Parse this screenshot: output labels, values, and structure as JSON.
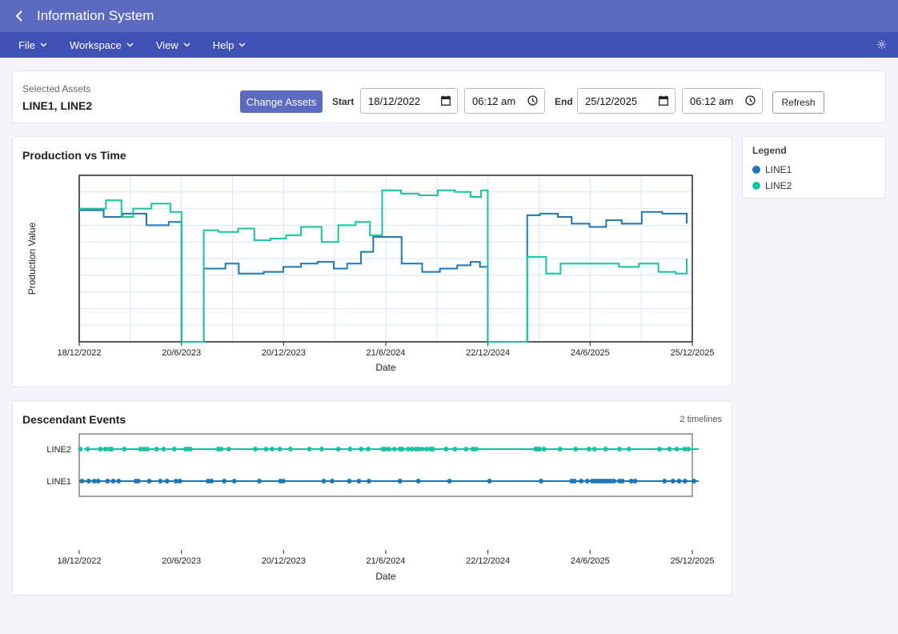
{
  "header": {
    "title": "Information System"
  },
  "menu": [
    "File",
    "Workspace",
    "View",
    "Help"
  ],
  "assets": {
    "label": "Selected Assets",
    "value": "LINE1, LINE2",
    "change_button": "Change Assets",
    "start_label": "Start",
    "start_date": "18/12/2022",
    "start_time": "06:12 am",
    "end_label": "End",
    "end_date": "25/12/2025",
    "end_time": "06:12 am",
    "refresh_button": "Refresh"
  },
  "legend": {
    "title": "Legend",
    "items": [
      {
        "name": "LINE1",
        "color": "#1f77b4"
      },
      {
        "name": "LINE2",
        "color": "#17c3a0"
      }
    ]
  },
  "chart_data": [
    {
      "type": "line",
      "title": "Production vs Time",
      "xlabel": "Date",
      "ylabel": "Production Value",
      "xlim": [
        "2022-12-18",
        "2025-12-25"
      ],
      "grid": true,
      "xticks": [
        "18/12/2022",
        "20/6/2023",
        "20/12/2023",
        "21/6/2024",
        "22/12/2024",
        "24/6/2025",
        "25/12/2025"
      ],
      "step": true,
      "series": [
        {
          "name": "LINE1",
          "color": "#1f77b4",
          "points": [
            [
              "2022-12-18",
              79
            ],
            [
              "2023-01-31",
              75
            ],
            [
              "2023-03-06",
              77
            ],
            [
              "2023-04-18",
              70
            ],
            [
              "2023-05-28",
              72
            ],
            [
              "2023-06-20",
              0
            ],
            [
              "2023-07-30",
              44
            ],
            [
              "2023-09-07",
              47
            ],
            [
              "2023-10-01",
              41
            ],
            [
              "2023-11-15",
              42
            ],
            [
              "2023-12-20",
              45
            ],
            [
              "2024-01-21",
              47
            ],
            [
              "2024-02-20",
              48
            ],
            [
              "2024-03-20",
              44
            ],
            [
              "2024-04-13",
              47
            ],
            [
              "2024-05-08",
              54
            ],
            [
              "2024-05-30",
              63
            ],
            [
              "2024-07-20",
              47
            ],
            [
              "2024-08-26",
              42
            ],
            [
              "2024-09-27",
              44
            ],
            [
              "2024-10-28",
              46
            ],
            [
              "2024-11-21",
              48
            ],
            [
              "2024-12-08",
              45
            ],
            [
              "2024-12-22",
              0
            ],
            [
              "2025-03-03",
              76
            ],
            [
              "2025-03-26",
              77
            ],
            [
              "2025-04-27",
              75
            ],
            [
              "2025-05-22",
              71
            ],
            [
              "2025-06-23",
              69
            ],
            [
              "2025-07-23",
              73
            ],
            [
              "2025-08-20",
              71
            ],
            [
              "2025-09-25",
              78
            ],
            [
              "2025-11-01",
              77
            ],
            [
              "2025-12-15",
              71
            ]
          ]
        },
        {
          "name": "LINE2",
          "color": "#17c3a0",
          "points": [
            [
              "2022-12-18",
              80
            ],
            [
              "2023-02-04",
              85
            ],
            [
              "2023-03-04",
              75
            ],
            [
              "2023-03-25",
              80
            ],
            [
              "2023-04-27",
              83
            ],
            [
              "2023-05-31",
              78
            ],
            [
              "2023-06-20",
              0
            ],
            [
              "2023-07-30",
              67
            ],
            [
              "2023-08-25",
              66
            ],
            [
              "2023-09-30",
              68
            ],
            [
              "2023-10-29",
              61
            ],
            [
              "2023-11-27",
              62
            ],
            [
              "2023-12-25",
              64
            ],
            [
              "2024-01-21",
              69
            ],
            [
              "2024-02-27",
              60
            ],
            [
              "2024-03-28",
              70
            ],
            [
              "2024-04-28",
              72
            ],
            [
              "2024-05-24",
              64
            ],
            [
              "2024-06-15",
              91
            ],
            [
              "2024-07-19",
              89
            ],
            [
              "2024-08-20",
              88
            ],
            [
              "2024-09-23",
              91
            ],
            [
              "2024-10-24",
              90
            ],
            [
              "2024-11-21",
              87
            ],
            [
              "2024-12-10",
              91
            ],
            [
              "2024-12-22",
              0
            ],
            [
              "2025-03-03",
              51
            ],
            [
              "2025-04-06",
              41
            ],
            [
              "2025-05-02",
              47
            ],
            [
              "2025-06-03",
              47
            ],
            [
              "2025-07-13",
              47
            ],
            [
              "2025-08-15",
              45
            ],
            [
              "2025-09-20",
              47
            ],
            [
              "2025-10-25",
              42
            ],
            [
              "2025-11-25",
              41
            ],
            [
              "2025-12-15",
              44
            ]
          ]
        }
      ]
    },
    {
      "type": "scatter",
      "title": "Descendant Events",
      "xlabel": "Date",
      "xlim": [
        "2022-12-18",
        "2025-12-25"
      ],
      "xticks": [
        "18/12/2022",
        "20/6/2023",
        "20/12/2023",
        "21/6/2024",
        "22/12/2024",
        "24/6/2025",
        "25/12/2025"
      ],
      "categories": [
        "LINE2",
        "LINE1"
      ],
      "series": [
        {
          "name": "LINE2",
          "color": "#17c3a0",
          "dates": [
            "2022-12-20",
            "2023-01-02",
            "2023-01-25",
            "2023-02-03",
            "2023-02-10",
            "2023-02-14",
            "2023-03-09",
            "2023-04-07",
            "2023-04-14",
            "2023-04-20",
            "2023-05-06",
            "2023-05-19",
            "2023-06-07",
            "2023-06-27",
            "2023-07-01",
            "2023-07-06",
            "2023-08-25",
            "2023-08-30",
            "2023-09-13",
            "2023-10-31",
            "2023-11-19",
            "2023-11-30",
            "2023-12-14",
            "2024-01-02",
            "2024-02-05",
            "2024-02-27",
            "2024-03-28",
            "2024-04-18",
            "2024-05-08",
            "2024-05-21",
            "2024-06-16",
            "2024-06-20",
            "2024-06-27",
            "2024-07-07",
            "2024-07-17",
            "2024-07-21",
            "2024-08-01",
            "2024-08-08",
            "2024-08-15",
            "2024-08-19",
            "2024-08-26",
            "2024-09-03",
            "2024-09-10",
            "2024-09-14",
            "2024-10-08",
            "2024-10-24",
            "2024-11-13",
            "2024-11-25",
            "2024-12-01",
            "2025-03-18",
            "2025-03-21",
            "2025-03-25",
            "2025-04-02",
            "2025-05-01",
            "2025-05-29",
            "2025-06-22",
            "2025-07-02",
            "2025-07-22",
            "2025-08-16",
            "2025-09-02",
            "2025-10-27",
            "2025-11-14",
            "2025-11-27",
            "2025-12-11",
            "2025-12-18"
          ]
        },
        {
          "name": "LINE1",
          "color": "#1f77b4",
          "dates": [
            "2022-12-23",
            "2023-01-04",
            "2023-01-14",
            "2023-01-21",
            "2023-02-07",
            "2023-02-17",
            "2023-02-27",
            "2023-03-30",
            "2023-04-03",
            "2023-04-23",
            "2023-05-13",
            "2023-05-25",
            "2023-06-10",
            "2023-06-17",
            "2023-08-07",
            "2023-08-13",
            "2023-09-05",
            "2023-09-23",
            "2023-11-07",
            "2023-12-15",
            "2023-12-20",
            "2024-03-02",
            "2024-03-17",
            "2024-04-17",
            "2024-05-04",
            "2024-05-22",
            "2024-07-17",
            "2024-08-19",
            "2024-10-14",
            "2024-12-25",
            "2025-03-28",
            "2025-05-22",
            "2025-05-27",
            "2025-06-08",
            "2025-06-19",
            "2025-06-28",
            "2025-07-03",
            "2025-07-07",
            "2025-07-12",
            "2025-07-16",
            "2025-07-21",
            "2025-07-26",
            "2025-07-31",
            "2025-08-06",
            "2025-08-16",
            "2025-08-21",
            "2025-09-06",
            "2025-09-13",
            "2025-11-05",
            "2025-11-20",
            "2025-12-01",
            "2025-12-12",
            "2025-12-28"
          ]
        }
      ],
      "count_label": "2 timelines"
    }
  ]
}
